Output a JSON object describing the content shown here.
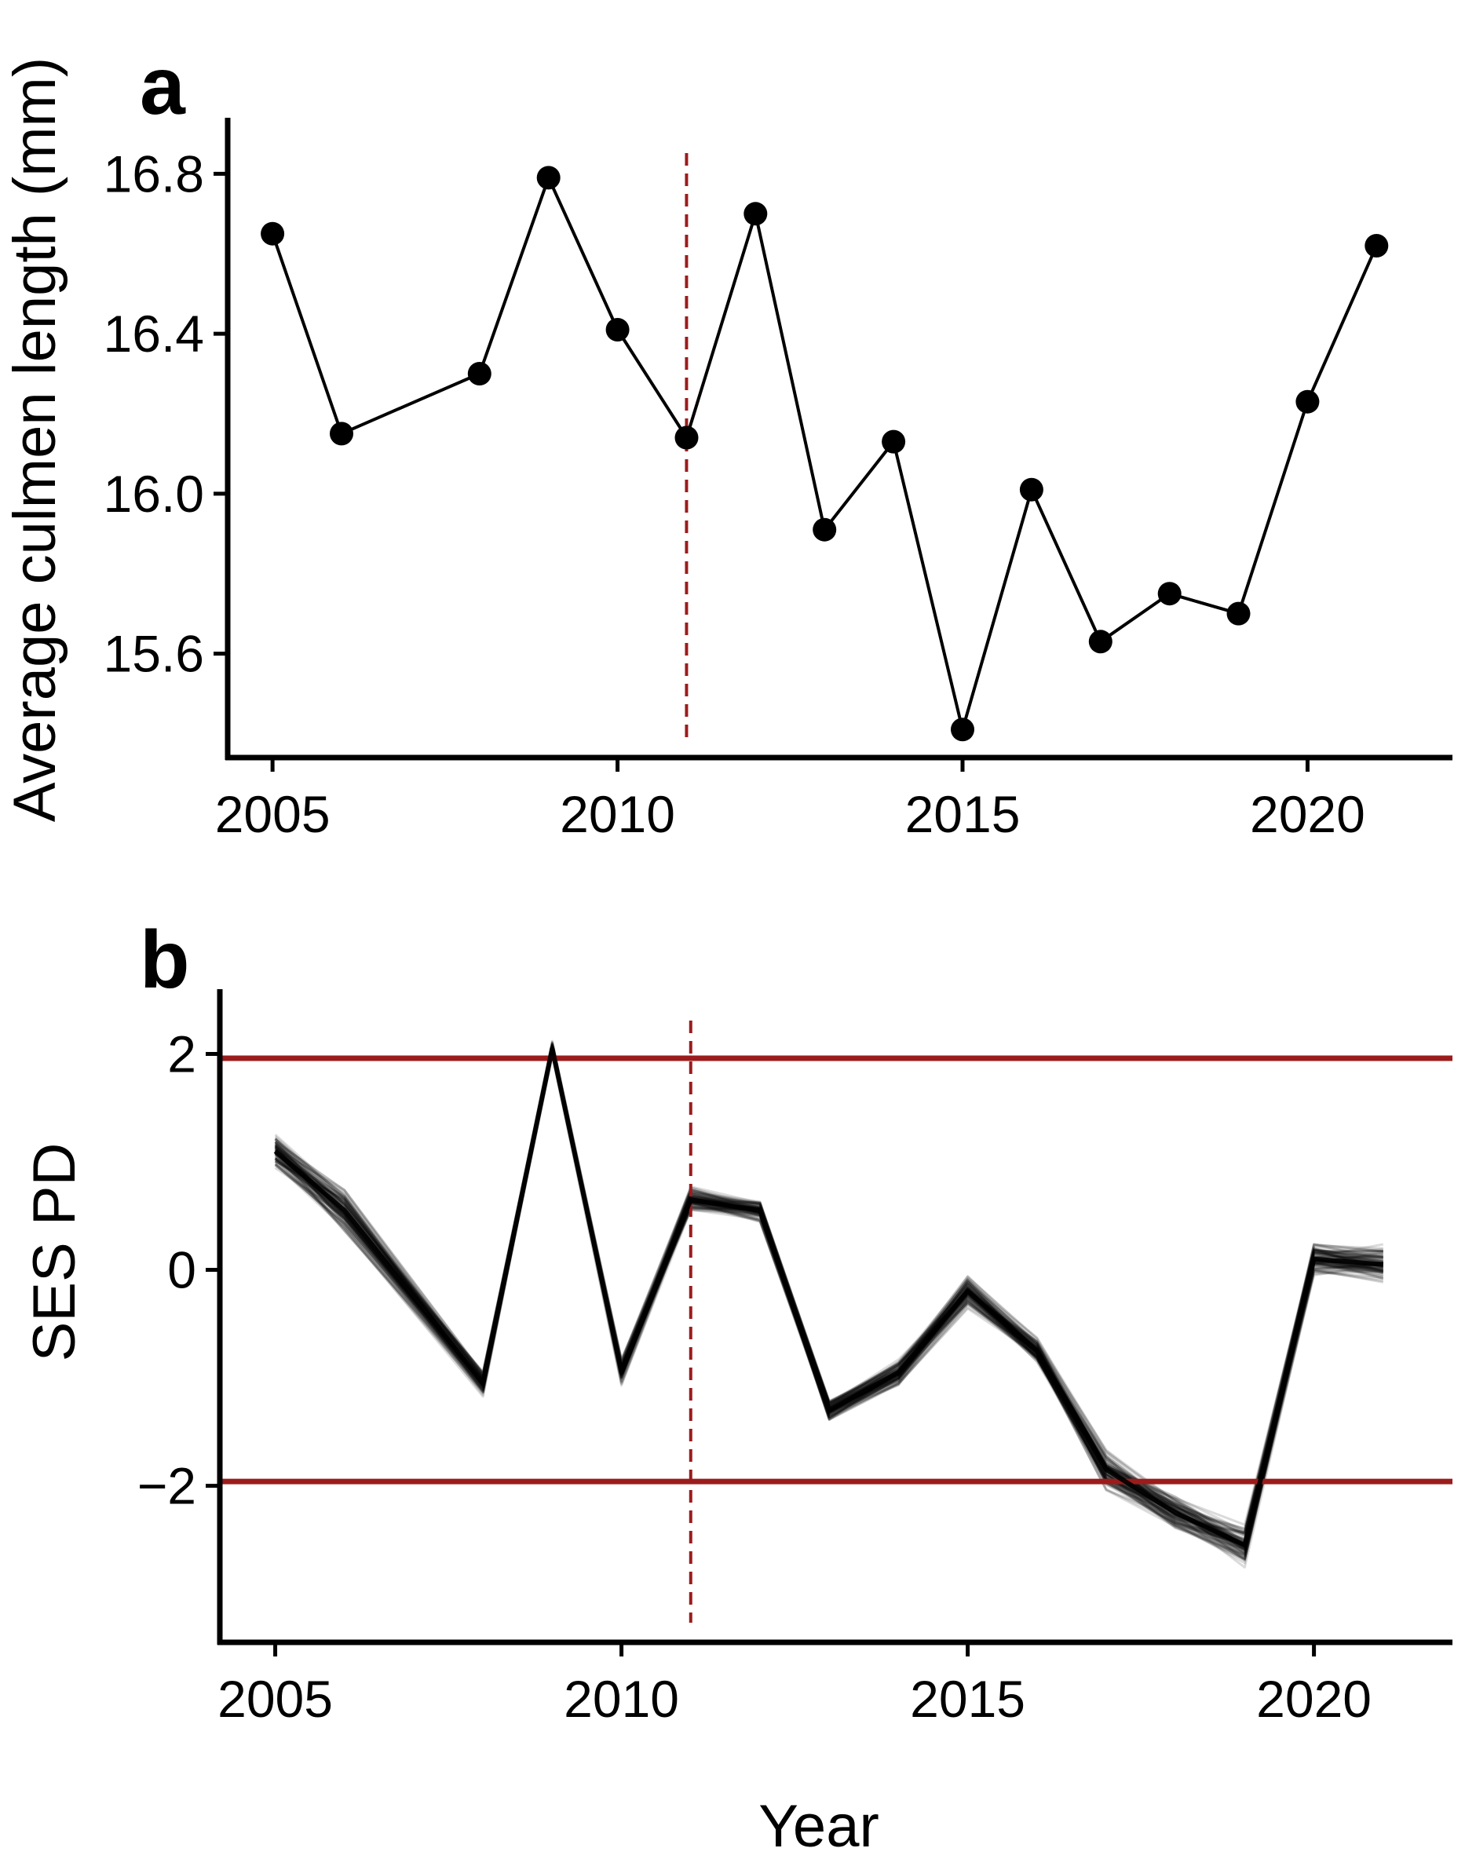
{
  "chart_data": [
    {
      "panel_label": "a",
      "type": "line",
      "title": "",
      "xlabel": "",
      "ylabel": "Average culmen length (mm)",
      "xlim": [
        2004.35,
        2022.1
      ],
      "ylim": [
        15.34,
        16.94
      ],
      "xticks": [
        2005,
        2010,
        2015,
        2020
      ],
      "xtick_labels": [
        "2005",
        "2010",
        "2015",
        "2020"
      ],
      "yticks": [
        15.6,
        16.0,
        16.4,
        16.8
      ],
      "ytick_labels": [
        "15.6",
        "16.0",
        "16.4",
        "16.8"
      ],
      "grid": false,
      "series": [
        {
          "name": "Average culmen length",
          "x": [
            2005,
            2006,
            2008,
            2009,
            2010,
            2011,
            2012,
            2013,
            2014,
            2015,
            2016,
            2017,
            2018,
            2019,
            2020,
            2021
          ],
          "y": [
            16.65,
            16.15,
            16.3,
            16.79,
            16.41,
            16.14,
            16.7,
            15.91,
            16.13,
            15.41,
            16.01,
            15.63,
            15.75,
            15.7,
            16.23,
            16.62
          ],
          "color": "#000000",
          "markers": true
        }
      ],
      "reference_lines": [
        {
          "orientation": "vertical",
          "x": 2011,
          "style": "dashed",
          "color": "#9b1c1c"
        }
      ]
    },
    {
      "panel_label": "b",
      "type": "line",
      "title": "",
      "xlabel": "Year",
      "ylabel": "SES PD",
      "xlim": [
        2004.2,
        2022.0
      ],
      "ylim": [
        -3.45,
        2.6
      ],
      "xticks": [
        2005,
        2010,
        2015,
        2020
      ],
      "xtick_labels": [
        "2005",
        "2010",
        "2015",
        "2020"
      ],
      "yticks": [
        -2,
        0,
        2
      ],
      "ytick_labels": [
        "−2",
        "0",
        "2"
      ],
      "grid": false,
      "series": [
        {
          "name": "SES PD (median trajectory)",
          "x": [
            2005,
            2006,
            2008,
            2009,
            2010,
            2011,
            2012,
            2013,
            2014,
            2015,
            2016,
            2017,
            2018,
            2019,
            2020,
            2021
          ],
          "y": [
            1.1,
            0.55,
            -1.05,
            2.05,
            -0.95,
            0.65,
            0.55,
            -1.3,
            -0.95,
            -0.2,
            -0.75,
            -1.85,
            -2.25,
            -2.55,
            0.1,
            0.05
          ],
          "color": "#000000"
        }
      ],
      "ensemble": {
        "description": "Many overlaid semi-transparent replicate trajectories",
        "count": 100,
        "spread": [
          0.15,
          0.2,
          0.12,
          0.07,
          0.12,
          0.12,
          0.1,
          0.1,
          0.12,
          0.15,
          0.12,
          0.18,
          0.15,
          0.2,
          0.15,
          0.18
        ]
      },
      "reference_lines": [
        {
          "orientation": "horizontal",
          "y": 1.96,
          "style": "solid",
          "color": "#9b1c1c"
        },
        {
          "orientation": "horizontal",
          "y": -1.96,
          "style": "solid",
          "color": "#9b1c1c"
        },
        {
          "orientation": "vertical",
          "x": 2011,
          "style": "dashed",
          "color": "#9b1c1c"
        }
      ]
    }
  ]
}
